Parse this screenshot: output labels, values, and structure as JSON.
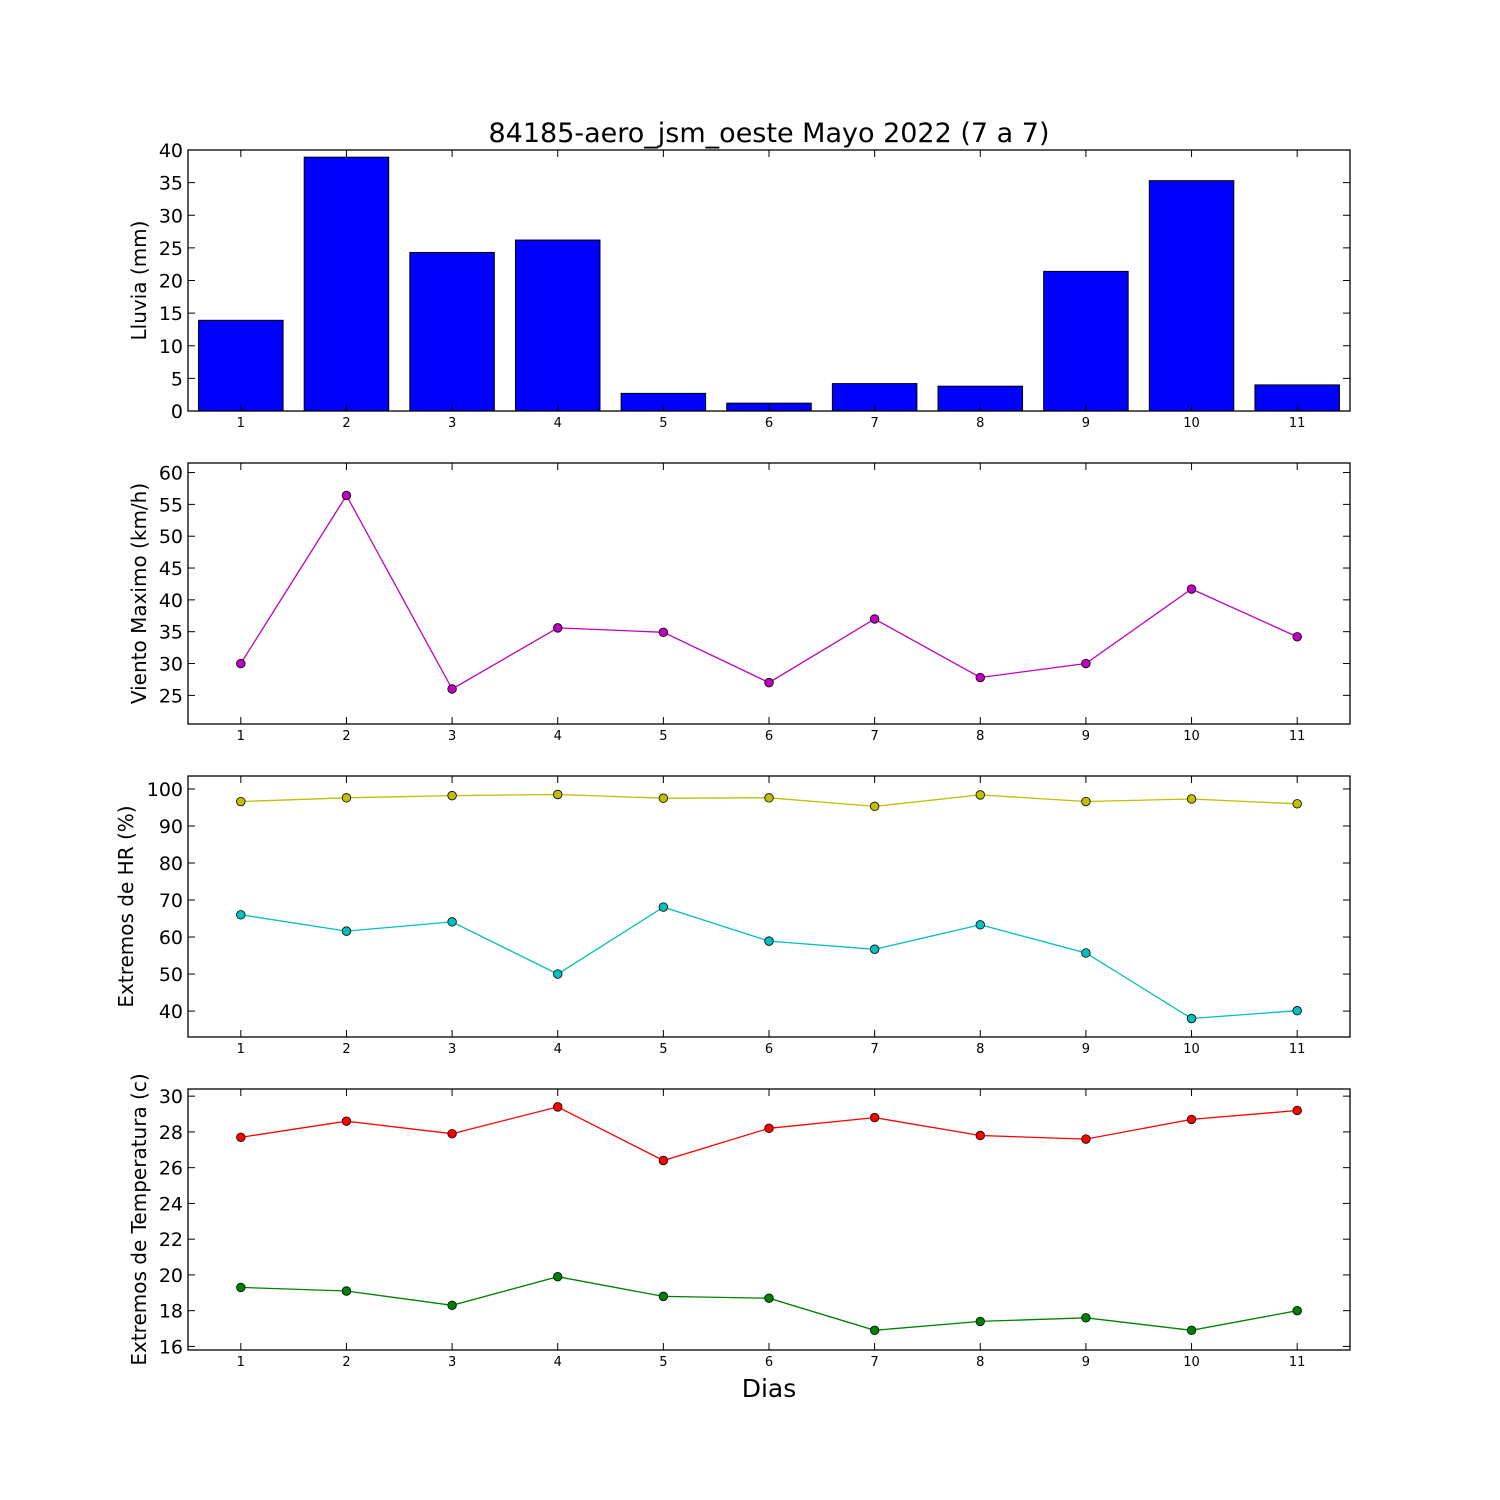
{
  "chart_data": {
    "title": "84185-aero_jsm_oeste Mayo 2022  (7 a 7)",
    "xlabel": "Dias",
    "x": [
      1,
      2,
      3,
      4,
      5,
      6,
      7,
      8,
      9,
      10,
      11
    ],
    "panels": [
      {
        "type": "bar",
        "ylabel": "Lluvia (mm)",
        "ylim": [
          0,
          40
        ],
        "yticks": [
          0,
          5,
          10,
          15,
          20,
          25,
          30,
          35,
          40
        ],
        "series": [
          {
            "values": [
              13.9,
              38.9,
              24.3,
              26.2,
              2.7,
              1.2,
              4.2,
              3.8,
              21.4,
              35.3,
              4.0
            ],
            "color": "#0000ff"
          }
        ]
      },
      {
        "type": "line",
        "ylabel": "Viento Maximo (km/h)",
        "ylim": [
          20.5,
          61.5
        ],
        "yticks": [
          25,
          30,
          35,
          40,
          45,
          50,
          55,
          60
        ],
        "series": [
          {
            "values": [
              30.0,
              56.4,
              26.0,
              35.6,
              34.9,
              27.0,
              37.0,
              27.8,
              30.0,
              41.7,
              34.2
            ],
            "color": "#bf00bf"
          }
        ]
      },
      {
        "type": "line",
        "ylabel": "Extremos de HR (%)",
        "ylim": [
          33,
          103.5
        ],
        "yticks": [
          40,
          50,
          60,
          70,
          80,
          90,
          100
        ],
        "series": [
          {
            "values": [
              96.6,
              97.6,
              98.2,
              98.5,
              97.5,
              97.6,
              95.3,
              98.4,
              96.6,
              97.3,
              96.0
            ],
            "color": "#bfbf00"
          },
          {
            "values": [
              66.0,
              61.6,
              64.1,
              50.0,
              68.1,
              58.9,
              56.7,
              63.3,
              55.7,
              38.0,
              40.1
            ],
            "color": "#00bfbf"
          }
        ]
      },
      {
        "type": "line",
        "ylabel": "Extremos de Temperatura (c)",
        "ylim": [
          15.8,
          30.4
        ],
        "yticks": [
          16,
          18,
          20,
          22,
          24,
          26,
          28,
          30
        ],
        "series": [
          {
            "values": [
              27.7,
              28.6,
              27.9,
              29.4,
              26.4,
              28.2,
              28.8,
              27.8,
              27.6,
              28.7,
              29.2
            ],
            "color": "#ff0000"
          },
          {
            "values": [
              19.3,
              19.1,
              18.3,
              19.9,
              18.8,
              18.7,
              16.9,
              17.4,
              17.6,
              16.9,
              18.0
            ],
            "color": "#008000"
          }
        ]
      }
    ]
  }
}
